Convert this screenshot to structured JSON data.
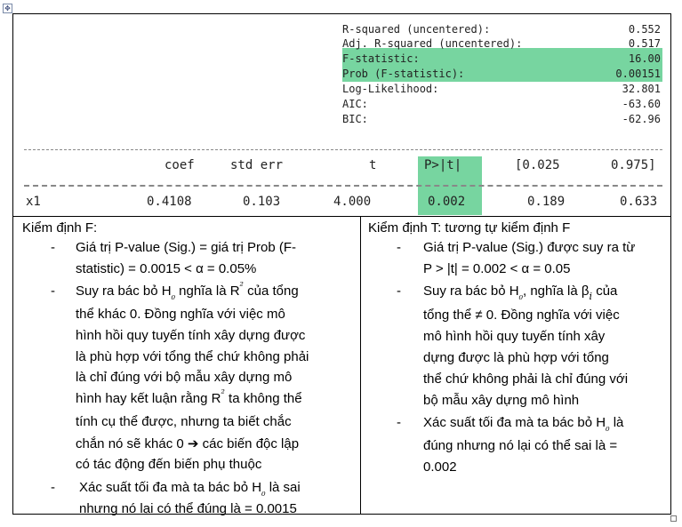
{
  "stats": [
    {
      "label": "R-squared (uncentered):",
      "value": "0.552"
    },
    {
      "label": "Adj. R-squared (uncentered):",
      "value": "0.517"
    },
    {
      "label": "F-statistic:",
      "value": "16.00"
    },
    {
      "label": "Prob (F-statistic):",
      "value": "0.00151"
    },
    {
      "label": "Log-Likelihood:",
      "value": "32.801"
    },
    {
      "label": "AIC:",
      "value": "-63.60"
    },
    {
      "label": "BIC:",
      "value": "-62.96"
    }
  ],
  "coef_table": {
    "headers": [
      "coef",
      "std err",
      "t",
      "P>|t|",
      "[0.025",
      "0.975]"
    ],
    "row": {
      "name": "x1",
      "values": [
        "0.4108",
        "0.103",
        "4.000",
        "0.002",
        "0.189",
        "0.633"
      ]
    }
  },
  "left": {
    "title": "Kiểm định F:",
    "lines": [
      "Giá trị P-value (Sig.) = giá trị Prob (F-",
      "statistic) = 0.0015 < α = 0.05%",
      "Suy ra bác bỏ H",
      "₀",
      " nghĩa là R",
      "²",
      " của tổng",
      "thể khác 0. Đồng nghĩa với việc mô",
      "hình hồi quy tuyến tính xây dựng được",
      "là phù hợp với tổng thể chứ không phải",
      "là chỉ đúng với bộ mẫu xây dựng mô",
      "hình hay kết luận rằng R",
      "²",
      " ta không thể",
      "tính cụ thể được, nhưng ta biết chắc",
      "chắn nó sẽ khác 0 ➔ các biến độc lập",
      "có tác động đến biến phụ thuộc",
      "Xác suất tối đa mà ta bác bỏ H",
      "₀",
      " là sai",
      "nhưng nó lại có thể đúng là = 0.0015"
    ]
  },
  "right": {
    "title": "Kiểm định T: tương tự kiểm định F",
    "lines": [
      "Giá trị P-value (Sig.) được suy ra từ",
      "P > |t| = 0.002 < α = 0.05",
      "Suy ra bác bỏ H",
      "₀",
      ", nghĩa là  β",
      "i",
      " của",
      "tổng thể ≠ 0. Đồng nghĩa với việc",
      "mô hình hồi quy tuyến tính xây",
      "dựng được là phù hợp với tổng",
      "thể chứ không phải là chỉ đúng với",
      "bộ mẫu xây dựng mô hình",
      "Xác suất tối đa mà ta bác bỏ H",
      "₀",
      " là",
      "đúng nhưng nó lại có thể sai là =",
      "0.002"
    ]
  },
  "bullet": "-"
}
